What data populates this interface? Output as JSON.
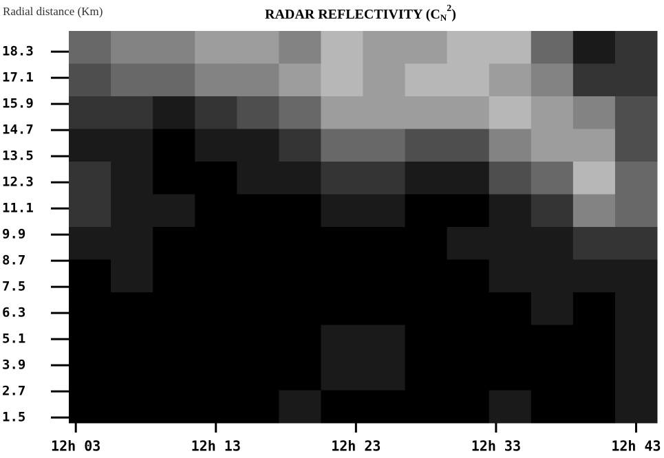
{
  "chart_data": {
    "type": "heatmap",
    "title": "RADAR REFLECTIVITY (C",
    "title_sub": "N",
    "title_sup": "2",
    "title_end": ")",
    "ylabel": "Radial distance (Km)",
    "xlim": [
      2.5,
      44.5
    ],
    "ylim": [
      1.25,
      19.25
    ],
    "xticks": [
      {
        "value": 3,
        "label": "12h 03"
      },
      {
        "value": 13,
        "label": "12h 13"
      },
      {
        "value": 23,
        "label": "12h 23"
      },
      {
        "value": 33,
        "label": "12h 33"
      },
      {
        "value": 43,
        "label": "12h 43"
      }
    ],
    "yticks": [
      18.3,
      17.1,
      15.9,
      14.7,
      13.5,
      12.3,
      11.1,
      9.9,
      8.7,
      7.5,
      6.3,
      5.1,
      3.9,
      2.7,
      1.5
    ],
    "xbins": [
      2.5,
      5.5,
      8.5,
      11.5,
      14.5,
      17.5,
      20.5,
      23.5,
      26.5,
      29.5,
      32.5,
      35.5,
      38.5,
      41.5,
      44.5
    ],
    "ybins": [
      19.25,
      17.75,
      16.25,
      14.75,
      13.25,
      11.75,
      10.25,
      8.75,
      7.25,
      5.75,
      4.25,
      2.75,
      1.25
    ],
    "zlim": [
      0,
      9
    ],
    "z": [
      [
        4,
        5,
        5,
        6,
        6,
        5,
        7,
        6,
        6,
        7,
        7,
        4,
        1,
        2
      ],
      [
        3,
        4,
        4,
        5,
        5,
        6,
        7,
        6,
        7,
        7,
        6,
        5,
        2,
        2
      ],
      [
        2,
        2,
        1,
        2,
        3,
        4,
        6,
        6,
        6,
        6,
        7,
        6,
        5,
        3
      ],
      [
        1,
        1,
        0,
        1,
        1,
        2,
        4,
        4,
        3,
        3,
        5,
        6,
        6,
        3
      ],
      [
        2,
        1,
        0,
        0,
        1,
        1,
        2,
        2,
        1,
        1,
        3,
        4,
        7,
        4
      ],
      [
        2,
        1,
        1,
        0,
        0,
        0,
        1,
        1,
        0,
        0,
        1,
        2,
        5,
        4
      ],
      [
        1,
        1,
        0,
        0,
        0,
        0,
        0,
        0,
        0,
        1,
        1,
        1,
        2,
        2
      ],
      [
        0,
        1,
        0,
        0,
        0,
        0,
        0,
        0,
        0,
        0,
        1,
        1,
        1,
        1
      ],
      [
        0,
        0,
        0,
        0,
        0,
        0,
        0,
        0,
        0,
        0,
        0,
        1,
        0,
        1
      ],
      [
        0,
        0,
        0,
        0,
        0,
        0,
        1,
        1,
        0,
        0,
        0,
        0,
        0,
        1
      ],
      [
        0,
        0,
        0,
        0,
        0,
        0,
        1,
        1,
        0,
        0,
        0,
        0,
        0,
        1
      ],
      [
        0,
        0,
        0,
        0,
        0,
        1,
        0,
        0,
        0,
        0,
        1,
        0,
        0,
        1
      ]
    ],
    "grid": false
  }
}
